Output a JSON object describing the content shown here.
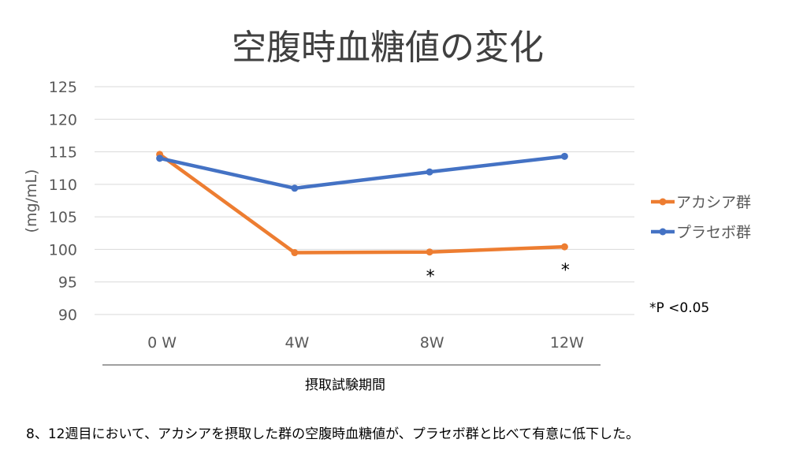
{
  "chart_data": {
    "type": "line",
    "title": "空腹時血糖値の変化",
    "xlabel": "摂取試験期間",
    "ylabel": "(mg/mL)",
    "categories": [
      "0 W",
      "4W",
      "8W",
      "12W"
    ],
    "ylim": [
      90,
      125
    ],
    "yticks": [
      90,
      95,
      100,
      105,
      110,
      115,
      120,
      125
    ],
    "grid": true,
    "legend_position": "right",
    "series": [
      {
        "name": "アカシア群",
        "color": "#ED7D31",
        "values": [
          114.6,
          99.5,
          99.6,
          100.4
        ]
      },
      {
        "name": "プラセボ群",
        "color": "#4472C4",
        "values": [
          114.0,
          109.4,
          111.9,
          114.3
        ]
      }
    ],
    "significance_markers": [
      {
        "category": "8W",
        "label": "*"
      },
      {
        "category": "12W",
        "label": "*"
      }
    ],
    "annotation": "*P <0.05"
  },
  "caption": "8、12週目において、アカシアを摂取した群の空腹時血糖値が、プラセボ群と比べて有意に低下した。"
}
